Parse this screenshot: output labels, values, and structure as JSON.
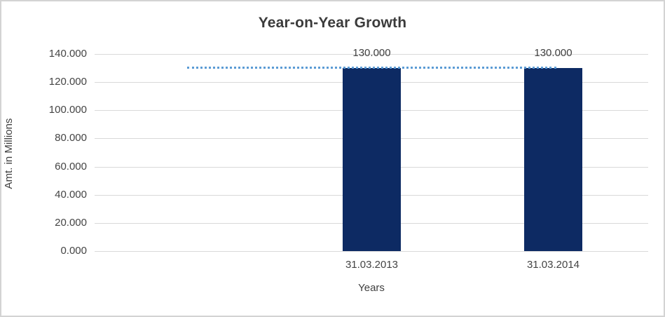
{
  "frame": {
    "background": "#ffffff",
    "border_color": "#d3d3d3"
  },
  "chart_data": {
    "type": "bar",
    "title": "Year-on-Year Growth",
    "xlabel": "Years",
    "ylabel": "Amt. in Millions",
    "categories": [
      "31.03.2013",
      "31.03.2014"
    ],
    "values": [
      130,
      130
    ],
    "value_labels": [
      "130.000",
      "130.000"
    ],
    "ylim": [
      0,
      140
    ],
    "y_ticks": [
      0,
      20,
      40,
      60,
      80,
      100,
      120,
      140
    ],
    "y_tick_labels": [
      "0.000",
      "20.000",
      "40.000",
      "60.000",
      "80.000",
      "100.000",
      "120.000",
      "140.000"
    ],
    "grid": true,
    "legend": "none",
    "bar_color": "#0d2a63",
    "gridline_color": "#d9d9d9",
    "tick_label_color": "#444444",
    "title_color": "#3b3b3b",
    "trendline": {
      "type": "linear",
      "style": "dotted",
      "color": "#5b9bd5",
      "start_value": 130,
      "end_value": 130
    }
  }
}
